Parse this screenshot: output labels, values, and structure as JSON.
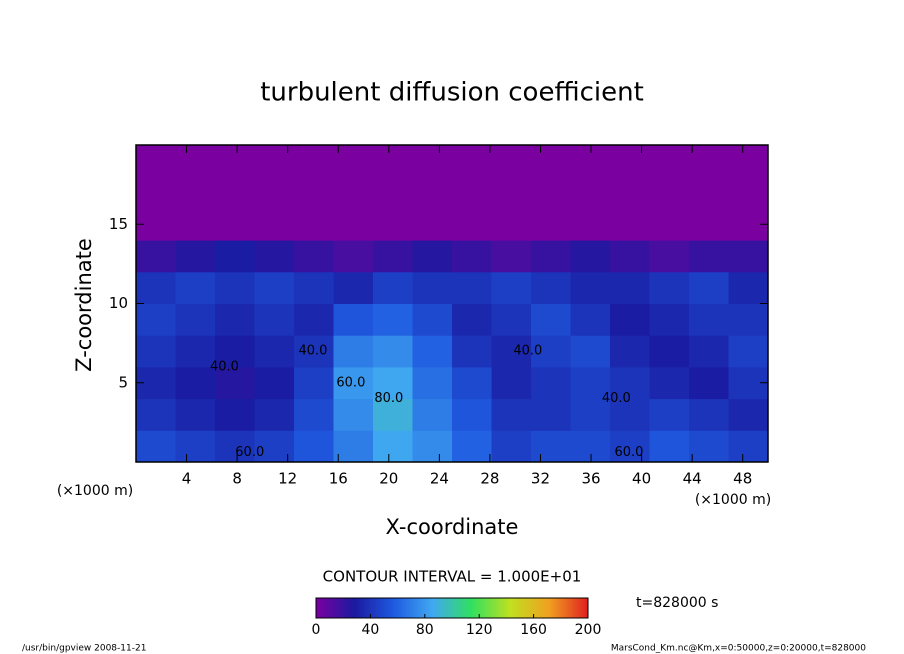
{
  "chart_data": {
    "type": "heatmap",
    "title": "turbulent diffusion coefficient",
    "x_label": "X-coordinate",
    "y_label": "Z-coordinate",
    "x_unit_label": "(×1000 m)",
    "y_unit_label": "(×1000 m)",
    "xlim": [
      0,
      50
    ],
    "xticks": [
      4,
      8,
      12,
      16,
      20,
      24,
      28,
      32,
      36,
      40,
      44,
      48
    ],
    "ylim": [
      0,
      20
    ],
    "yticks": [
      5,
      10,
      15
    ],
    "z": [
      [
        50,
        45,
        40,
        45,
        55,
        70,
        85,
        75,
        60,
        45,
        50,
        50,
        45,
        55,
        50,
        45
      ],
      [
        40,
        35,
        30,
        35,
        50,
        75,
        90,
        70,
        55,
        40,
        40,
        45,
        40,
        45,
        40,
        35
      ],
      [
        35,
        30,
        25,
        30,
        45,
        80,
        85,
        65,
        50,
        35,
        40,
        45,
        40,
        35,
        30,
        40
      ],
      [
        40,
        35,
        30,
        35,
        40,
        70,
        75,
        60,
        40,
        35,
        45,
        50,
        35,
        30,
        35,
        45
      ],
      [
        45,
        40,
        35,
        40,
        35,
        55,
        60,
        50,
        35,
        40,
        50,
        40,
        30,
        35,
        40,
        40
      ],
      [
        40,
        45,
        40,
        45,
        40,
        35,
        45,
        40,
        40,
        45,
        40,
        35,
        35,
        40,
        45,
        35
      ],
      [
        20,
        25,
        30,
        25,
        20,
        15,
        20,
        25,
        20,
        15,
        20,
        25,
        20,
        15,
        20,
        20
      ],
      [
        0,
        0,
        0,
        0,
        0,
        0,
        0,
        0,
        0,
        0,
        0,
        0,
        0,
        0,
        0,
        0
      ],
      [
        0,
        0,
        0,
        0,
        0,
        0,
        0,
        0,
        0,
        0,
        0,
        0,
        0,
        0,
        0,
        0
      ],
      [
        0,
        0,
        0,
        0,
        0,
        0,
        0,
        0,
        0,
        0,
        0,
        0,
        0,
        0,
        0,
        0
      ]
    ],
    "annotations": [
      {
        "text": "40.0",
        "x": 7,
        "y": 6
      },
      {
        "text": "40.0",
        "x": 14,
        "y": 7
      },
      {
        "text": "60.0",
        "x": 17,
        "y": 5
      },
      {
        "text": "80.0",
        "x": 20,
        "y": 4
      },
      {
        "text": "40.0",
        "x": 31,
        "y": 7
      },
      {
        "text": "40.0",
        "x": 38,
        "y": 4
      },
      {
        "text": "60.0",
        "x": 9,
        "y": 0.6
      },
      {
        "text": "60.0",
        "x": 39,
        "y": 0.6
      }
    ],
    "contour_interval": "CONTOUR INTERVAL = 1.000E+01",
    "time_label": "t=828000 s",
    "clim": [
      0,
      200
    ],
    "cticks": [
      0,
      40,
      80,
      120,
      160,
      200
    ],
    "colorscale": [
      "#7a00a0",
      "#1a1aa0",
      "#1f5ae0",
      "#40a8f0",
      "#30e060",
      "#c0e020",
      "#f0a020",
      "#e02020"
    ],
    "footer_left": "/usr/bin/gpview  2008-11-21",
    "footer_right": "MarsCond_Km.nc@Km,x=0:50000,z=0:20000,t=828000"
  }
}
